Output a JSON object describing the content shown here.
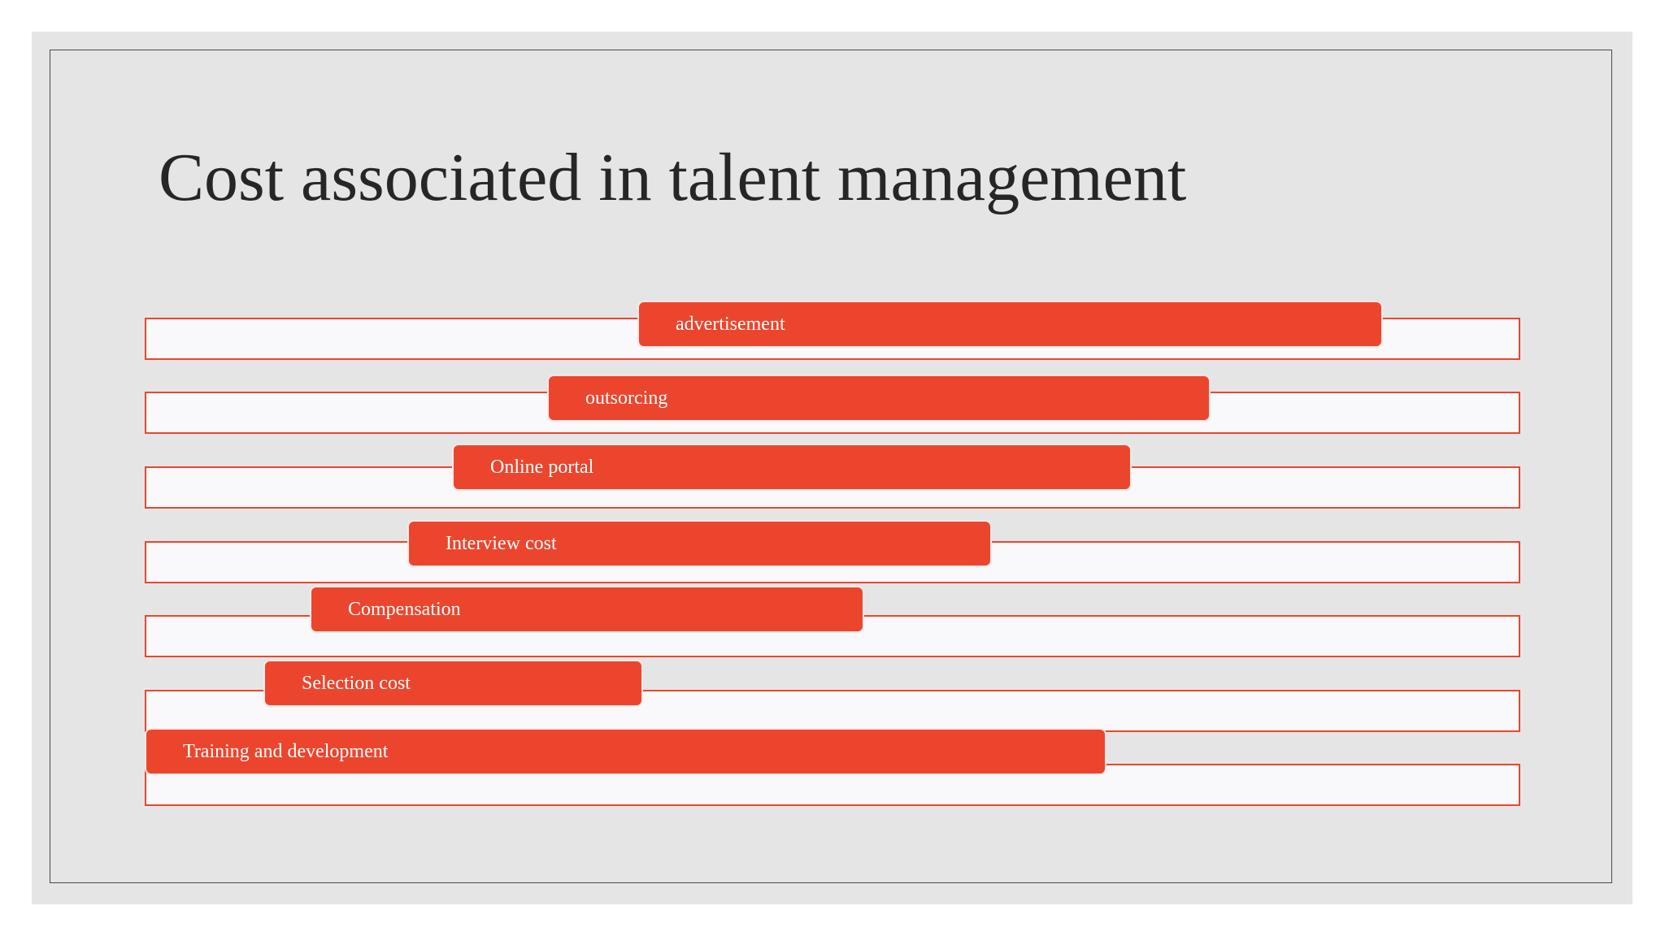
{
  "slide": {
    "title": "Cost associated in talent management",
    "items": [
      {
        "label": "advertisement"
      },
      {
        "label": "outsorcing"
      },
      {
        "label": "Online portal"
      },
      {
        "label": "Interview cost"
      },
      {
        "label": "Compensation"
      },
      {
        "label": "Selection cost"
      },
      {
        "label": "Training and development"
      }
    ]
  },
  "colors": {
    "background": "#e5e5e6",
    "accent": "#ec452d",
    "track_fill": "#f9f8fa",
    "title_text": "#262626"
  }
}
